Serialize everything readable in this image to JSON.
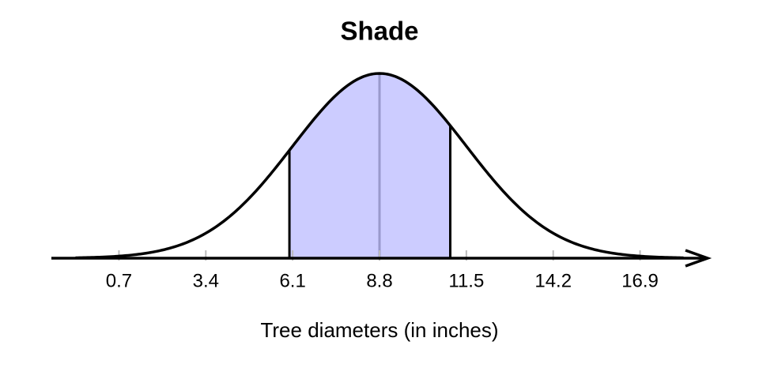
{
  "chart_data": {
    "type": "normal",
    "title": "Shade",
    "xlabel": "Tree diameters (in inches)",
    "mean": 8.8,
    "sd": 2.7,
    "shade": [
      6.0,
      11.0
    ],
    "xlim": [
      -1.4,
      19.0
    ],
    "xticks": [
      0.7,
      3.4,
      6.1,
      8.8,
      11.5,
      14.2,
      16.9
    ],
    "shade_color": "#ccccff",
    "mean_line_color": "#9999cc",
    "curve_color": "#000000",
    "tick_color": "#bbbbbb"
  }
}
